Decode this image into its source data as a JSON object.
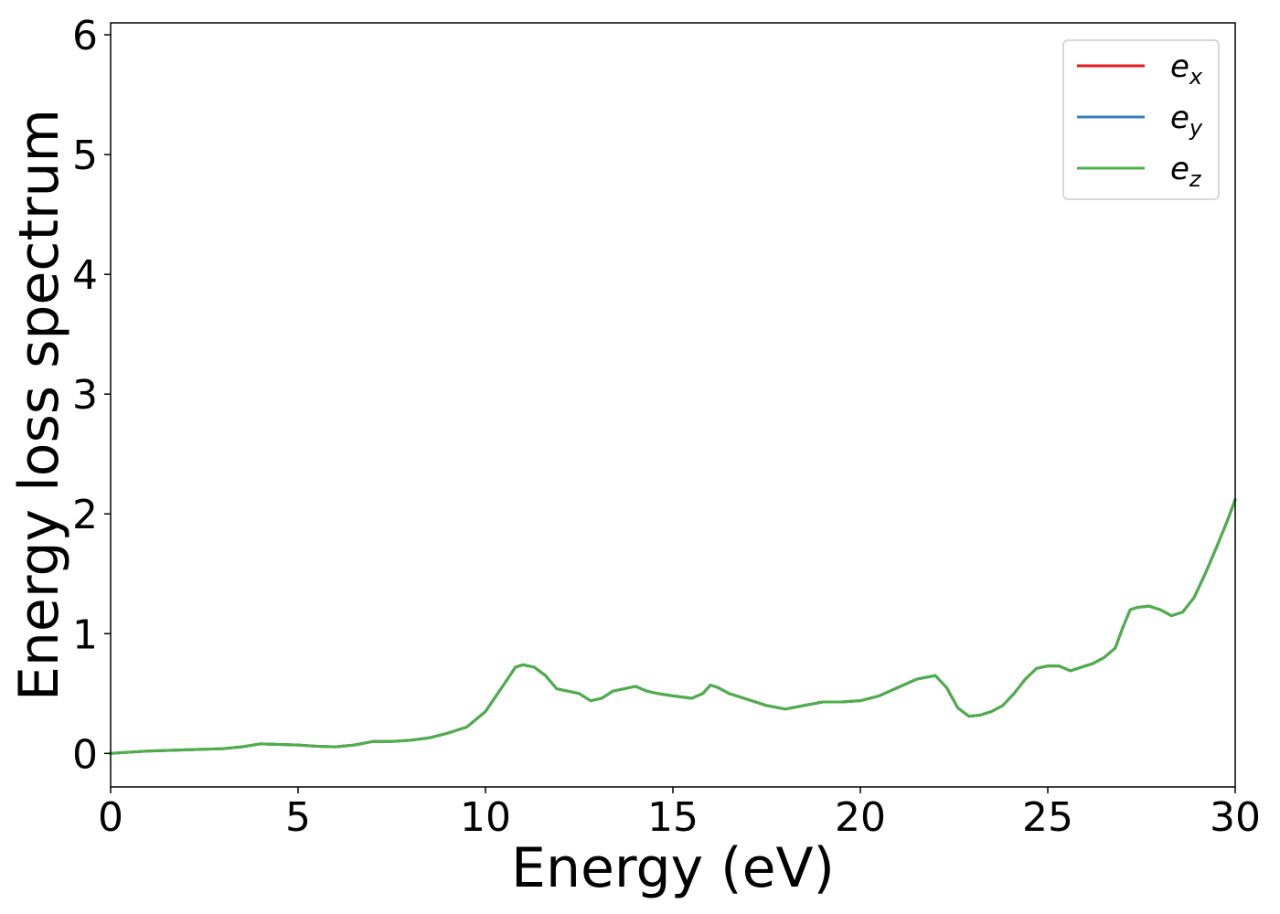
{
  "chart_data": {
    "type": "line",
    "xlabel": "Energy (eV)",
    "ylabel": "Energy loss spectrum",
    "xlim": [
      0,
      30
    ],
    "ylim": [
      -0.28,
      6.1
    ],
    "xticks": [
      "0",
      "5",
      "10",
      "15",
      "20",
      "25",
      "30"
    ],
    "yticks": [
      "0",
      "1",
      "2",
      "3",
      "4",
      "5",
      "6"
    ],
    "grid": false,
    "legend_position": "top-right",
    "x": [
      0,
      1,
      2,
      3,
      3.5,
      4,
      4.5,
      5,
      5.5,
      6,
      6.5,
      7,
      7.5,
      8,
      8.5,
      9,
      9.5,
      10,
      10.5,
      10.8,
      11,
      11.3,
      11.6,
      11.9,
      12.2,
      12.5,
      12.8,
      13.1,
      13.4,
      13.7,
      14,
      14.3,
      14.6,
      15,
      15.5,
      15.8,
      16,
      16.2,
      16.5,
      17,
      17.5,
      18,
      18.5,
      19,
      19.5,
      20,
      20.5,
      21,
      21.5,
      22,
      22.3,
      22.6,
      22.9,
      23.2,
      23.5,
      23.8,
      24.1,
      24.4,
      24.7,
      25,
      25.3,
      25.6,
      25.9,
      26.2,
      26.5,
      26.8,
      27,
      27.2,
      27.4,
      27.7,
      28,
      28.3,
      28.6,
      28.9,
      29.2,
      29.5,
      29.8,
      30
    ],
    "series": [
      {
        "name": "e_x",
        "label_base": "e",
        "label_sub": "x",
        "color": "#e41a1c",
        "values": [
          0.0,
          0.02,
          0.03,
          0.04,
          0.055,
          0.08,
          0.075,
          0.07,
          0.06,
          0.055,
          0.07,
          0.1,
          0.1,
          0.11,
          0.13,
          0.17,
          0.22,
          0.35,
          0.58,
          0.72,
          0.74,
          0.72,
          0.65,
          0.54,
          0.52,
          0.5,
          0.44,
          0.46,
          0.52,
          0.54,
          0.56,
          0.52,
          0.5,
          0.48,
          0.46,
          0.5,
          0.57,
          0.55,
          0.5,
          0.45,
          0.4,
          0.37,
          0.4,
          0.43,
          0.43,
          0.44,
          0.48,
          0.55,
          0.62,
          0.65,
          0.55,
          0.38,
          0.31,
          0.32,
          0.35,
          0.4,
          0.5,
          0.62,
          0.71,
          0.73,
          0.73,
          0.69,
          0.72,
          0.75,
          0.8,
          0.88,
          1.05,
          1.2,
          1.22,
          1.23,
          1.2,
          1.15,
          1.18,
          1.3,
          1.5,
          1.72,
          1.95,
          2.12
        ]
      },
      {
        "name": "e_y",
        "label_base": "e",
        "label_sub": "y",
        "color": "#377eb8",
        "values": [
          0.0,
          0.02,
          0.03,
          0.04,
          0.055,
          0.08,
          0.075,
          0.07,
          0.06,
          0.055,
          0.07,
          0.1,
          0.1,
          0.11,
          0.13,
          0.17,
          0.22,
          0.35,
          0.58,
          0.72,
          0.74,
          0.72,
          0.65,
          0.54,
          0.52,
          0.5,
          0.44,
          0.46,
          0.52,
          0.54,
          0.56,
          0.52,
          0.5,
          0.48,
          0.46,
          0.5,
          0.57,
          0.55,
          0.5,
          0.45,
          0.4,
          0.37,
          0.4,
          0.43,
          0.43,
          0.44,
          0.48,
          0.55,
          0.62,
          0.65,
          0.55,
          0.38,
          0.31,
          0.32,
          0.35,
          0.4,
          0.5,
          0.62,
          0.71,
          0.73,
          0.73,
          0.69,
          0.72,
          0.75,
          0.8,
          0.88,
          1.05,
          1.2,
          1.22,
          1.23,
          1.2,
          1.15,
          1.18,
          1.3,
          1.5,
          1.72,
          1.95,
          2.12
        ]
      },
      {
        "name": "e_z",
        "label_base": "e",
        "label_sub": "z",
        "color": "#4daf4a",
        "values": [
          0.0,
          0.02,
          0.03,
          0.04,
          0.055,
          0.08,
          0.075,
          0.07,
          0.06,
          0.055,
          0.07,
          0.1,
          0.1,
          0.11,
          0.13,
          0.17,
          0.22,
          0.35,
          0.58,
          0.72,
          0.74,
          0.72,
          0.65,
          0.54,
          0.52,
          0.5,
          0.44,
          0.46,
          0.52,
          0.54,
          0.56,
          0.52,
          0.5,
          0.48,
          0.46,
          0.5,
          0.57,
          0.55,
          0.5,
          0.45,
          0.4,
          0.37,
          0.4,
          0.43,
          0.43,
          0.44,
          0.48,
          0.55,
          0.62,
          0.65,
          0.55,
          0.38,
          0.31,
          0.32,
          0.35,
          0.4,
          0.5,
          0.62,
          0.71,
          0.73,
          0.73,
          0.69,
          0.72,
          0.75,
          0.8,
          0.88,
          1.05,
          1.2,
          1.22,
          1.23,
          1.2,
          1.15,
          1.18,
          1.3,
          1.5,
          1.72,
          1.95,
          2.12
        ]
      }
    ]
  }
}
